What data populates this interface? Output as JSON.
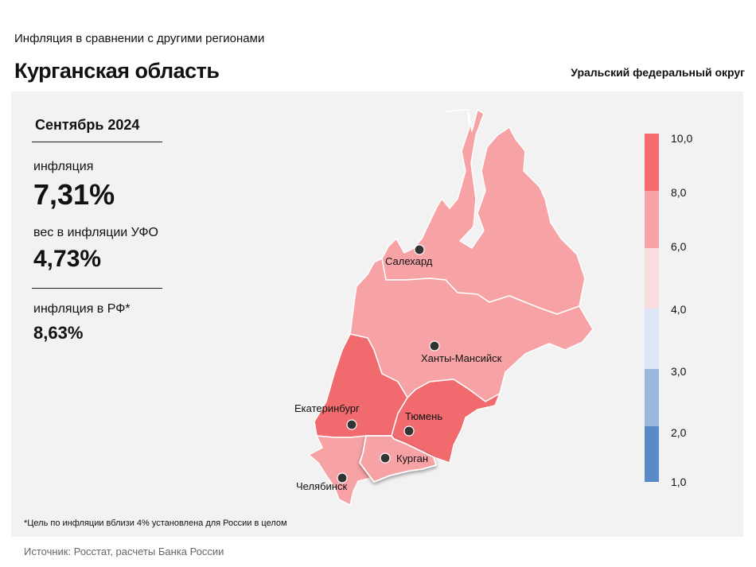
{
  "header": {
    "subtitle": "Инфляция в сравнении с другими регионами",
    "title": "Курганская область",
    "district": "Уральский федеральный округ"
  },
  "stats": {
    "month": "Сентябрь 2024",
    "inflation_label": "инфляция",
    "inflation_value": "7,31%",
    "weight_label": "вес в инфляции УФО",
    "weight_value": "4,73%",
    "rf_label": "инфляция в РФ*",
    "rf_value": "8,63%"
  },
  "legend": {
    "ticks": [
      "10,0",
      "8,0",
      "6,0",
      "4,0",
      "3,0",
      "2,0",
      "1,0"
    ],
    "colors": [
      "#f76b6f",
      "#f7a3a6",
      "#fadde0",
      "#dde6f4",
      "#9bb7dc",
      "#5a8bc7"
    ]
  },
  "map": {
    "cities": {
      "salekhard": "Салехард",
      "khanty": "Ханты-Мансийск",
      "yekaterinburg": "Екатеринбург",
      "tyumen": "Тюмень",
      "kurgan": "Курган",
      "chelyabinsk": "Челябинск"
    },
    "fills": {
      "yamal": "#f7a3a6",
      "khmao": "#f7a3a6",
      "sverdlovsk": "#f06a6e",
      "tyumen": "#f06a6e",
      "kurgan": "#f7a3a6",
      "chelyabinsk": "#f7a3a6"
    }
  },
  "footnote": "*Цель по инфляции вблизи 4% установлена для России в целом",
  "source": "Источник: Росстат, расчеты Банка России"
}
